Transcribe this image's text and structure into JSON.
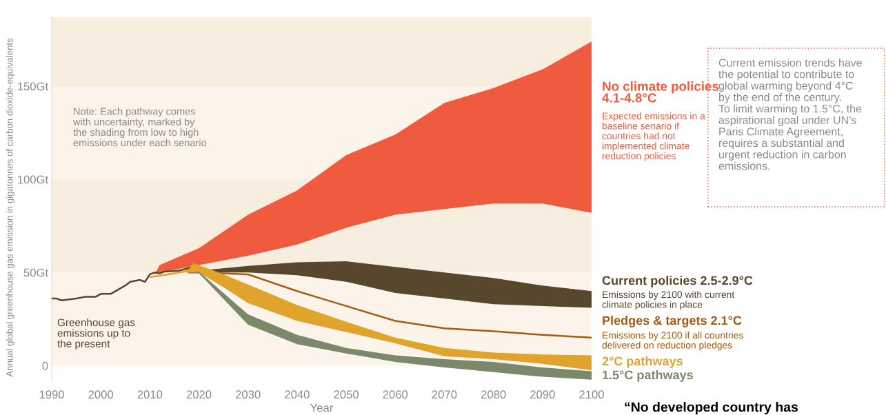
{
  "chart_data": {
    "type": "line",
    "xlabel": "Year",
    "ylabel": "Annual global greenhouse gas emission in gigatonnes of carbon dioxide-equivalents",
    "xlim": [
      1990,
      2100
    ],
    "ylim": [
      -8,
      187
    ],
    "xticks": [
      1990,
      2000,
      2010,
      2020,
      2030,
      2040,
      2050,
      2060,
      2070,
      2080,
      2090,
      2100
    ],
    "yticks": [
      0,
      {
        "value": 50,
        "label": "50Gt"
      },
      {
        "value": 100,
        "label": "100Gt"
      },
      {
        "value": 150,
        "label": "150Gt"
      }
    ],
    "grid": false,
    "legend": false,
    "bands": [
      {
        "axis": "y",
        "from": 0,
        "to": 50,
        "color": "#fcf4ea"
      },
      {
        "axis": "y",
        "from": 50,
        "to": 100,
        "color": "#f7eedf"
      },
      {
        "axis": "y",
        "from": 100,
        "to": 150,
        "color": "#fcf4ea"
      },
      {
        "axis": "y",
        "from": 150,
        "to": 187,
        "color": "#f7eedf"
      }
    ],
    "series": [
      {
        "type": "area",
        "name": "No climate policies\n4.1-4.8°C",
        "color": "#f05a3e",
        "x": [
          2011,
          2012,
          2020,
          2030,
          2040,
          2050,
          2060,
          2070,
          2080,
          2090,
          2100
        ],
        "values": [
          null,
          null,
          null,
          null,
          null,
          null,
          null,
          null,
          null,
          null,
          null
        ],
        "lower": [
          49,
          50,
          54,
          59,
          65,
          74,
          81,
          84,
          87,
          87,
          82
        ],
        "upper": [
          49,
          54,
          63,
          81,
          94,
          113,
          124,
          141,
          149,
          159,
          174
        ]
      },
      {
        "type": "area",
        "name": "Current policies 2.5-2.9°C",
        "color": "#57472d",
        "x": [
          2018,
          2020,
          2030,
          2040,
          2050,
          2060,
          2070,
          2080,
          2090,
          2100
        ],
        "values": [
          null,
          null,
          null,
          null,
          null,
          null,
          null,
          null,
          null,
          null
        ],
        "lower": [
          50,
          50,
          50,
          48.5,
          45,
          39,
          36,
          33,
          32,
          31
        ],
        "upper": [
          50,
          51,
          53.5,
          55.5,
          56,
          53,
          50,
          47,
          43,
          40
        ]
      },
      {
        "name": "Pledges & targets 2.1°C",
        "color": "#a85a12",
        "x": [
          2018,
          2020,
          2030,
          2040,
          2045,
          2050,
          2060,
          2070,
          2080,
          2090,
          2100
        ],
        "values": [
          50,
          50,
          49,
          40,
          36,
          32,
          24,
          20,
          18.5,
          16.5,
          15
        ]
      },
      {
        "type": "area",
        "name": "2°C pathways",
        "color": "#e0a42c",
        "x": [
          2010,
          2015,
          2017,
          2019,
          2020,
          2025,
          2030,
          2040,
          2050,
          2060,
          2070,
          2080,
          2090,
          2100
        ],
        "values": [
          null,
          null,
          null,
          null,
          null,
          null,
          null,
          null,
          null,
          null,
          null,
          null,
          null,
          null
        ],
        "lower": [
          47,
          49,
          50,
          50,
          50,
          42,
          33.5,
          24,
          18,
          12,
          5,
          3.5,
          1,
          -2.5
        ],
        "upper": [
          48,
          50,
          51,
          55,
          54,
          49,
          43.5,
          32.5,
          23.5,
          15,
          9.5,
          7,
          6,
          5.5
        ]
      },
      {
        "type": "area",
        "name": "1.5°C pathways",
        "color": "#7b896a",
        "x": [
          2018,
          2020,
          2030,
          2040,
          2050,
          2060,
          2070,
          2080,
          2090,
          2100
        ],
        "values": [
          null,
          null,
          null,
          null,
          null,
          null,
          null,
          null,
          null,
          null
        ],
        "lower": [
          50,
          49.5,
          22,
          11.5,
          6.5,
          2,
          -1,
          -3.5,
          -6,
          -7.5
        ],
        "upper": [
          50,
          50.5,
          27.5,
          16.5,
          9.5,
          5.5,
          3.5,
          2,
          -1,
          -3
        ]
      },
      {
        "name": "Greenhouse gas\nemissions up to\nthe present",
        "color": "#57472d",
        "x": [
          1990,
          1991,
          1992,
          1995,
          1997,
          1999,
          2000,
          2002,
          2005,
          2006,
          2008,
          2009,
          2010,
          2011,
          2012,
          2013,
          2016,
          2018
        ],
        "values": [
          36,
          36,
          35,
          36,
          37,
          37,
          38.5,
          38.5,
          43,
          45,
          46,
          45,
          49,
          50,
          49.5,
          50.5,
          51,
          52.5
        ]
      }
    ],
    "annotations": [
      "Note: Each pathway comes\nwith uncertainty, marked by\nthe shading from low to high\nemissions under each senario",
      "Expected emissions in a\nbaseline senario if\ncountries had not\nimplemented climate\nreduction policies",
      "Emissions by 2100 with current\nclimate policies in place",
      "Emissions by 2100 if all countries\ndelivered on reduction pledges",
      "Current emission trends have\nthe potential to contribute to\nglobal warming beyond 4°C\nby the end of the century.\nTo limit warming to 1.5°C, the\naspirational goal under UN’s\nParis Climate Agreement,\nrequires a substantial and\nurgent reduction in carbon\nemissions.",
      "“No developed country has"
    ]
  }
}
